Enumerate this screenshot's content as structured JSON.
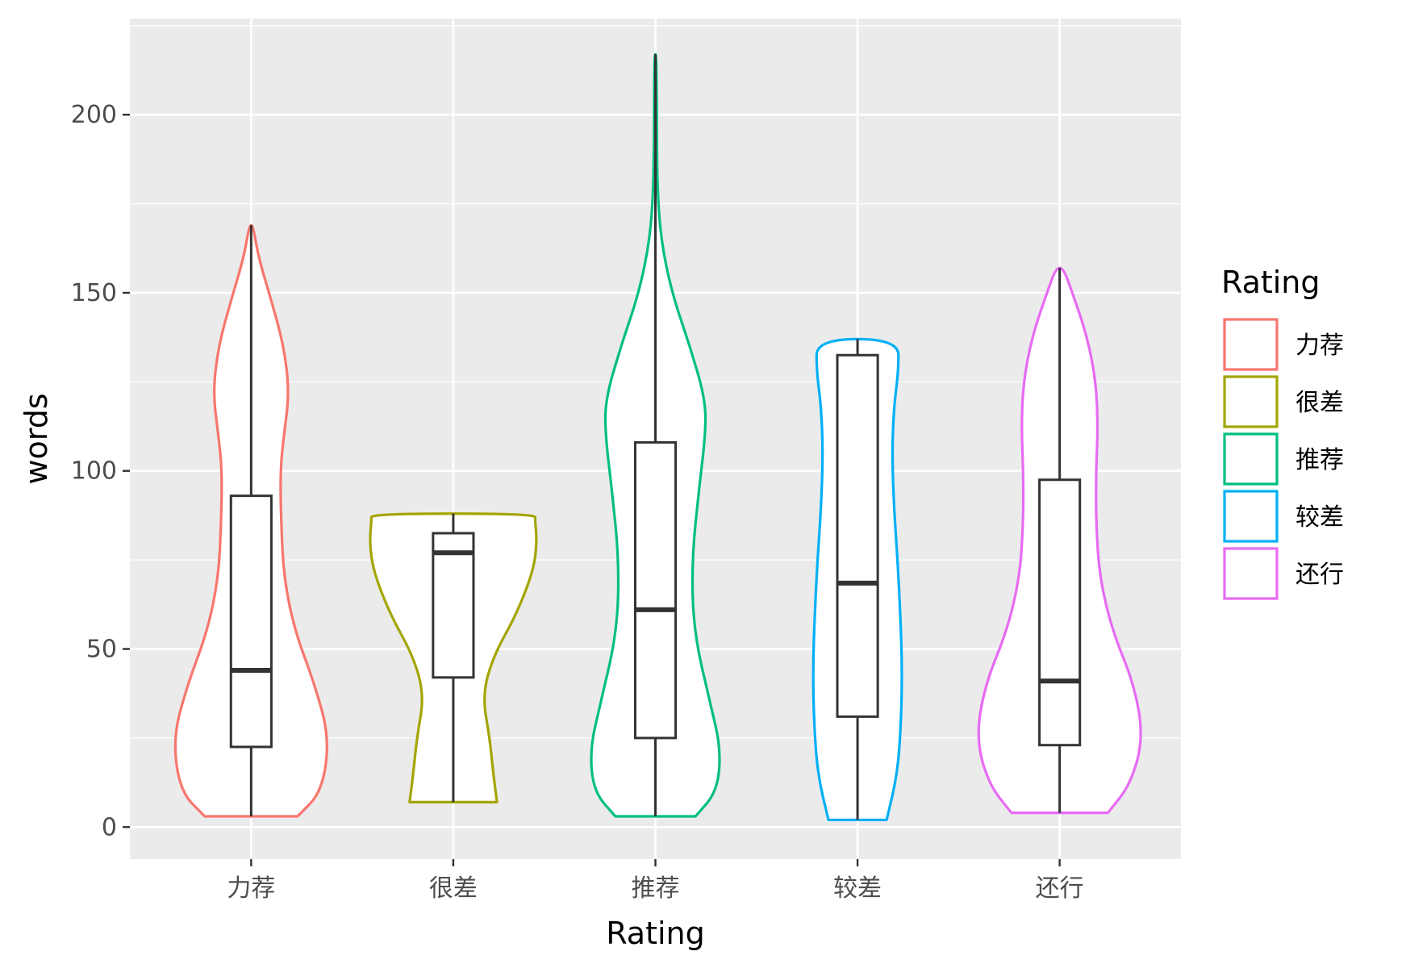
{
  "chart_data": {
    "type": "violin",
    "xlabel": "Rating",
    "ylabel": "words",
    "ylim": [
      -9,
      227
    ],
    "yticks": [
      0,
      50,
      100,
      150,
      200
    ],
    "categories": [
      "力荐",
      "很差",
      "推荐",
      "较差",
      "还行"
    ],
    "grid": true,
    "legend": {
      "title": "Rating",
      "position": "right"
    },
    "series": [
      {
        "name": "力荐",
        "color": "#F8766D",
        "min": 3,
        "max": 169,
        "box": {
          "q1": 22.5,
          "median": 44,
          "q3": 93,
          "whisker_low": 3,
          "whisker_high": 169
        },
        "density": [
          [
            3,
            0.51
          ],
          [
            10,
            0.78
          ],
          [
            25,
            0.86
          ],
          [
            40,
            0.7
          ],
          [
            55,
            0.48
          ],
          [
            70,
            0.36
          ],
          [
            85,
            0.33
          ],
          [
            100,
            0.32
          ],
          [
            110,
            0.36
          ],
          [
            122,
            0.42
          ],
          [
            135,
            0.36
          ],
          [
            148,
            0.22
          ],
          [
            160,
            0.08
          ],
          [
            169,
            0.02
          ]
        ]
      },
      {
        "name": "很差",
        "color": "#A3A500",
        "min": 7,
        "max": 88,
        "box": {
          "q1": 42,
          "median": 77,
          "q3": 82.5,
          "whisker_low": 7,
          "whisker_high": 88
        },
        "density": [
          [
            7,
            0.48
          ],
          [
            15,
            0.44
          ],
          [
            25,
            0.4
          ],
          [
            37,
            0.32
          ],
          [
            48,
            0.44
          ],
          [
            60,
            0.7
          ],
          [
            72,
            0.88
          ],
          [
            80,
            0.92
          ],
          [
            86,
            0.9
          ],
          [
            88,
            0.9
          ]
        ]
      },
      {
        "name": "推荐",
        "color": "#00BF7D",
        "min": 3,
        "max": 217,
        "box": {
          "q1": 25,
          "median": 61,
          "q3": 108,
          "whisker_low": 3,
          "whisker_high": 217
        },
        "density": [
          [
            3,
            0.44
          ],
          [
            10,
            0.68
          ],
          [
            22,
            0.72
          ],
          [
            35,
            0.6
          ],
          [
            55,
            0.42
          ],
          [
            75,
            0.4
          ],
          [
            95,
            0.48
          ],
          [
            110,
            0.55
          ],
          [
            120,
            0.55
          ],
          [
            135,
            0.38
          ],
          [
            150,
            0.18
          ],
          [
            165,
            0.06
          ],
          [
            180,
            0.02
          ],
          [
            200,
            0.015
          ],
          [
            217,
            0.01
          ]
        ]
      },
      {
        "name": "较差",
        "color": "#00B0F6",
        "min": 2,
        "max": 137,
        "box": {
          "q1": 31,
          "median": 68.5,
          "q3": 132.5,
          "whisker_low": 2,
          "whisker_high": 137
        },
        "density": [
          [
            2,
            0.32
          ],
          [
            15,
            0.44
          ],
          [
            30,
            0.48
          ],
          [
            45,
            0.49
          ],
          [
            60,
            0.47
          ],
          [
            75,
            0.44
          ],
          [
            90,
            0.4
          ],
          [
            105,
            0.38
          ],
          [
            118,
            0.4
          ],
          [
            128,
            0.45
          ],
          [
            137,
            0.45
          ]
        ]
      },
      {
        "name": "还行",
        "color": "#E76BF3",
        "min": 4,
        "max": 157,
        "box": {
          "q1": 23,
          "median": 41,
          "q3": 97.5,
          "whisker_low": 4,
          "whisker_high": 157
        },
        "density": [
          [
            4,
            0.53
          ],
          [
            12,
            0.78
          ],
          [
            25,
            0.92
          ],
          [
            40,
            0.82
          ],
          [
            55,
            0.58
          ],
          [
            70,
            0.44
          ],
          [
            85,
            0.4
          ],
          [
            100,
            0.4
          ],
          [
            112,
            0.42
          ],
          [
            125,
            0.4
          ],
          [
            138,
            0.3
          ],
          [
            150,
            0.14
          ],
          [
            157,
            0.04
          ]
        ]
      }
    ]
  }
}
